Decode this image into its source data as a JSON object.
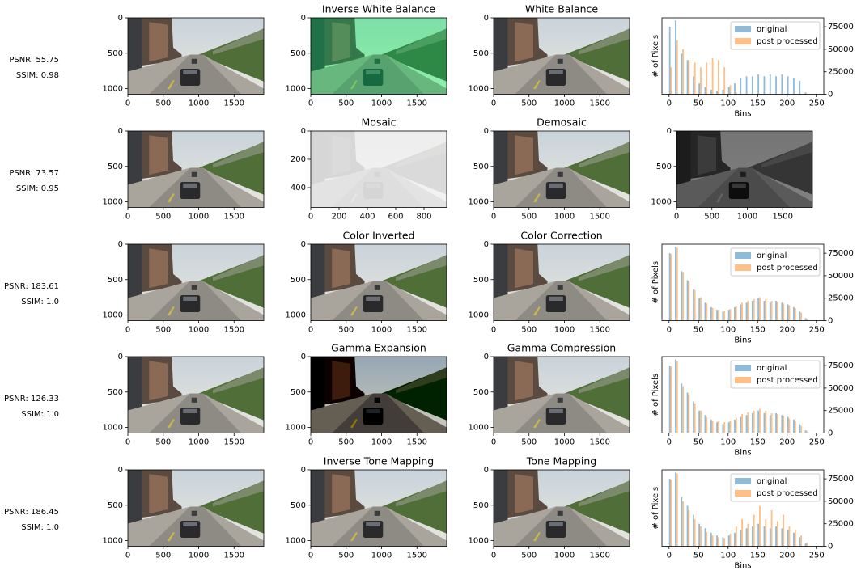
{
  "rows": [
    {
      "psnr": "PSNR: 55.75",
      "ssim": "SSIM: 0.98",
      "images": [
        {
          "xlim": [
            0,
            1920
          ],
          "ylim": [
            1080,
            0
          ],
          "xticks": [
            0,
            500,
            1000,
            1500
          ],
          "yticks": [
            0,
            500,
            1000
          ]
        },
        {
          "title": "Inverse White Balance",
          "xlim": [
            0,
            1920
          ],
          "ylim": [
            1080,
            0
          ],
          "xticks": [
            0,
            500,
            1000,
            1500
          ],
          "yticks": [
            0,
            500,
            1000
          ]
        },
        {
          "title": "White Balance",
          "xlim": [
            0,
            1920
          ],
          "ylim": [
            1080,
            0
          ],
          "xticks": [
            0,
            500,
            1000,
            1500
          ],
          "yticks": [
            0,
            500,
            1000
          ]
        }
      ],
      "histogram": {
        "type": "bar",
        "xlabel": "Bins",
        "ylabel": "# of Pixels",
        "x": [
          0,
          10,
          20,
          30,
          40,
          50,
          60,
          70,
          80,
          90,
          100,
          110,
          120,
          130,
          140,
          150,
          160,
          170,
          180,
          190,
          200,
          210,
          220,
          230,
          240
        ],
        "series": [
          {
            "name": "original",
            "color": "#1f77b4",
            "values": [
              75000,
              82000,
              45000,
              38000,
              20000,
              12000,
              8000,
              5000,
              4000,
              5000,
              8000,
              12000,
              18000,
              20000,
              20000,
              22000,
              20000,
              22000,
              20000,
              22000,
              20000,
              18000,
              15000,
              2000,
              0
            ]
          },
          {
            "name": "post processed",
            "color": "#ff7f0e",
            "values": [
              30000,
              60000,
              50000,
              38000,
              35000,
              30000,
              35000,
              40000,
              38000,
              30000,
              10000,
              2000,
              0,
              0,
              0,
              0,
              0,
              0,
              0,
              0,
              0,
              0,
              0,
              0,
              0
            ]
          }
        ],
        "xlim": [
          -12,
          262
        ],
        "xticks": [
          0,
          50,
          100,
          150,
          200,
          250
        ],
        "ylim": [
          0,
          85000
        ],
        "yticks": [
          0,
          25000,
          50000,
          75000
        ]
      }
    },
    {
      "psnr": "PSNR: 73.57",
      "ssim": "SSIM: 0.95",
      "images": [
        {
          "xlim": [
            0,
            1920
          ],
          "ylim": [
            1080,
            0
          ],
          "xticks": [
            0,
            500,
            1000,
            1500
          ],
          "yticks": [
            0,
            500,
            1000
          ]
        },
        {
          "title": "Mosaic",
          "xlim": [
            0,
            960
          ],
          "ylim": [
            540,
            0
          ],
          "xticks": [
            0,
            200,
            400,
            600,
            800
          ],
          "yticks": [
            0,
            200,
            400
          ]
        },
        {
          "title": "Demosaic",
          "xlim": [
            0,
            1920
          ],
          "ylim": [
            1080,
            0
          ],
          "xticks": [
            0,
            500,
            1000,
            1500
          ],
          "yticks": [
            0,
            500,
            1000
          ]
        },
        {
          "xlim": [
            0,
            1920
          ],
          "ylim": [
            1080,
            0
          ],
          "xticks": [
            0,
            500,
            1000,
            1500
          ],
          "yticks": [
            0,
            500,
            1000
          ]
        }
      ]
    },
    {
      "psnr": "PSNR: 183.61",
      "ssim": "SSIM: 1.0",
      "images": [
        {
          "xlim": [
            0,
            1920
          ],
          "ylim": [
            1080,
            0
          ],
          "xticks": [
            0,
            500,
            1000,
            1500
          ],
          "yticks": [
            0,
            500,
            1000
          ]
        },
        {
          "title": "Color Inverted",
          "xlim": [
            0,
            1920
          ],
          "ylim": [
            1080,
            0
          ],
          "xticks": [
            0,
            500,
            1000,
            1500
          ],
          "yticks": [
            0,
            500,
            1000
          ]
        },
        {
          "title": "Color Correction",
          "xlim": [
            0,
            1920
          ],
          "ylim": [
            1080,
            0
          ],
          "xticks": [
            0,
            500,
            1000,
            1500
          ],
          "yticks": [
            0,
            500,
            1000
          ]
        }
      ],
      "histogram": {
        "type": "bar",
        "xlabel": "Bins",
        "ylabel": "# of Pixels",
        "x": [
          0,
          10,
          20,
          30,
          40,
          50,
          60,
          70,
          80,
          90,
          100,
          110,
          120,
          130,
          140,
          150,
          160,
          170,
          180,
          190,
          200,
          210,
          220,
          230,
          240
        ],
        "series": [
          {
            "name": "original",
            "color": "#1f77b4",
            "values": [
              75000,
              82000,
              55000,
              45000,
              35000,
              25000,
              20000,
              15000,
              12000,
              10000,
              12000,
              15000,
              18000,
              20000,
              22000,
              25000,
              22000,
              20000,
              22000,
              20000,
              18000,
              15000,
              10000,
              3000,
              0
            ]
          },
          {
            "name": "post processed",
            "color": "#ff7f0e",
            "values": [
              74000,
              81000,
              54000,
              44000,
              34000,
              26000,
              19000,
              14000,
              12000,
              11000,
              13000,
              16000,
              20000,
              22000,
              24000,
              26000,
              24000,
              22000,
              21000,
              19000,
              17000,
              14000,
              9000,
              2000,
              0
            ]
          }
        ],
        "xlim": [
          -12,
          262
        ],
        "xticks": [
          0,
          50,
          100,
          150,
          200,
          250
        ],
        "ylim": [
          0,
          85000
        ],
        "yticks": [
          0,
          25000,
          50000,
          75000
        ]
      }
    },
    {
      "psnr": "PSNR: 126.33",
      "ssim": "SSIM: 1.0",
      "images": [
        {
          "xlim": [
            0,
            1920
          ],
          "ylim": [
            1080,
            0
          ],
          "xticks": [
            0,
            500,
            1000,
            1500
          ],
          "yticks": [
            0,
            500,
            1000
          ]
        },
        {
          "title": "Gamma Expansion",
          "xlim": [
            0,
            1920
          ],
          "ylim": [
            1080,
            0
          ],
          "xticks": [
            0,
            500,
            1000,
            1500
          ],
          "yticks": [
            0,
            500,
            1000
          ]
        },
        {
          "title": "Gamma Compression",
          "xlim": [
            0,
            1920
          ],
          "ylim": [
            1080,
            0
          ],
          "xticks": [
            0,
            500,
            1000,
            1500
          ],
          "yticks": [
            0,
            500,
            1000
          ]
        }
      ],
      "histogram": {
        "type": "bar",
        "xlabel": "Bins",
        "ylabel": "# of Pixels",
        "x": [
          0,
          10,
          20,
          30,
          40,
          50,
          60,
          70,
          80,
          90,
          100,
          110,
          120,
          130,
          140,
          150,
          160,
          170,
          180,
          190,
          200,
          210,
          220,
          230,
          240
        ],
        "series": [
          {
            "name": "original",
            "color": "#1f77b4",
            "values": [
              75000,
              82000,
              55000,
              45000,
              35000,
              25000,
              20000,
              15000,
              12000,
              10000,
              12000,
              15000,
              18000,
              20000,
              22000,
              25000,
              22000,
              20000,
              22000,
              20000,
              18000,
              15000,
              10000,
              3000,
              0
            ]
          },
          {
            "name": "post processed",
            "color": "#ff7f0e",
            "values": [
              74000,
              80000,
              52000,
              43000,
              33000,
              25000,
              18000,
              14000,
              13000,
              12000,
              14000,
              17000,
              21000,
              23000,
              25000,
              27000,
              25000,
              22000,
              21000,
              19000,
              16000,
              13000,
              8000,
              2000,
              0
            ]
          }
        ],
        "xlim": [
          -12,
          262
        ],
        "xticks": [
          0,
          50,
          100,
          150,
          200,
          250
        ],
        "ylim": [
          0,
          85000
        ],
        "yticks": [
          0,
          25000,
          50000,
          75000
        ]
      }
    },
    {
      "psnr": "PSNR: 186.45",
      "ssim": "SSIM: 1.0",
      "images": [
        {
          "xlim": [
            0,
            1920
          ],
          "ylim": [
            1080,
            0
          ],
          "xticks": [
            0,
            500,
            1000,
            1500
          ],
          "yticks": [
            0,
            500,
            1000
          ]
        },
        {
          "title": "Inverse Tone Mapping",
          "xlim": [
            0,
            1920
          ],
          "ylim": [
            1080,
            0
          ],
          "xticks": [
            0,
            500,
            1000,
            1500
          ],
          "yticks": [
            0,
            500,
            1000
          ]
        },
        {
          "title": "Tone Mapping",
          "xlim": [
            0,
            1920
          ],
          "ylim": [
            1080,
            0
          ],
          "xticks": [
            0,
            500,
            1000,
            1500
          ],
          "yticks": [
            0,
            500,
            1000
          ]
        }
      ],
      "histogram": {
        "type": "bar",
        "xlabel": "Bins",
        "ylabel": "# of Pixels",
        "x": [
          0,
          10,
          20,
          30,
          40,
          50,
          60,
          70,
          80,
          90,
          100,
          110,
          120,
          130,
          140,
          150,
          160,
          170,
          180,
          190,
          200,
          210,
          220,
          230,
          240
        ],
        "series": [
          {
            "name": "original",
            "color": "#1f77b4",
            "values": [
              75000,
              82000,
              55000,
              45000,
              35000,
              25000,
              20000,
              15000,
              12000,
              10000,
              12000,
              15000,
              18000,
              20000,
              22000,
              25000,
              22000,
              20000,
              22000,
              20000,
              18000,
              15000,
              10000,
              3000,
              0
            ]
          },
          {
            "name": "post processed",
            "color": "#ff7f0e",
            "values": [
              74000,
              81000,
              50000,
              40000,
              30000,
              22000,
              16000,
              12000,
              10000,
              9000,
              14000,
              22000,
              30000,
              25000,
              35000,
              45000,
              30000,
              40000,
              28000,
              35000,
              22000,
              18000,
              12000,
              4000,
              0
            ]
          }
        ],
        "xlim": [
          -12,
          262
        ],
        "xticks": [
          0,
          50,
          100,
          150,
          200,
          250
        ],
        "ylim": [
          0,
          85000
        ],
        "yticks": [
          0,
          25000,
          50000,
          75000
        ]
      }
    }
  ]
}
